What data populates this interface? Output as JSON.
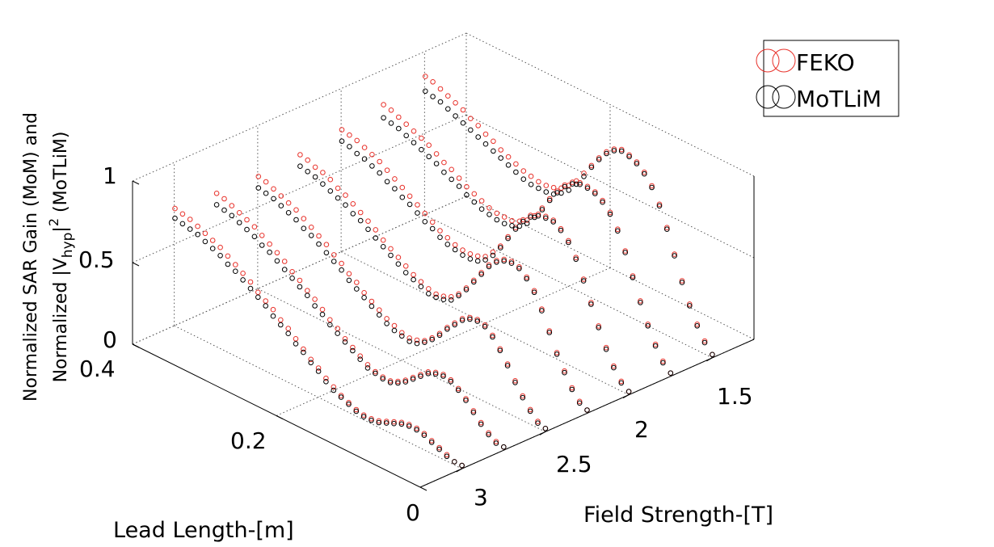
{
  "chart_data": {
    "type": "scatter",
    "title": "",
    "xlabel": "Field Strength-[T]",
    "ylabel": "Lead Length-[m]",
    "zlabel_lines": [
      "Normalized SAR Gain (MoM) and",
      "Normalized |V",
      "hyp",
      "|",
      "2",
      " (MoTLiM)"
    ],
    "x_ticks": [
      "1.5",
      "2",
      "2.5",
      "3"
    ],
    "y_ticks": [
      "0",
      "0.2",
      "0.4"
    ],
    "z_ticks": [
      "0",
      "0.5",
      "1"
    ],
    "x_range": [
      1.25,
      3.25
    ],
    "y_range": [
      0,
      0.4
    ],
    "z_range": [
      0,
      1
    ],
    "field_strengths": [
      1.5,
      1.75,
      2.0,
      2.25,
      2.5,
      2.75,
      3.0
    ],
    "lead_lengths": [
      0.0,
      0.0105,
      0.021,
      0.0315,
      0.042,
      0.0525,
      0.063,
      0.0735,
      0.084,
      0.0945,
      0.105,
      0.1155,
      0.126,
      0.1365,
      0.147,
      0.1575,
      0.168,
      0.1785,
      0.189,
      0.1995,
      0.21,
      0.2205,
      0.231,
      0.2415,
      0.252,
      0.2625,
      0.273,
      0.2835,
      0.294,
      0.3045,
      0.315,
      0.3255,
      0.336,
      0.3465,
      0.357,
      0.3675,
      0.378,
      0.3885,
      0.399
    ],
    "grid": true,
    "legend_position": "top-right",
    "series": [
      {
        "name": "FEKO",
        "color": "#e8312a",
        "marker": "circle",
        "values_by_field": [
          [
            0.02,
            0.08,
            0.16,
            0.26,
            0.38,
            0.52,
            0.66,
            0.78,
            0.87,
            0.93,
            0.97,
            0.99,
            1.0,
            0.98,
            0.94,
            0.88,
            0.81,
            0.74,
            0.67,
            0.62,
            0.58,
            0.56,
            0.55,
            0.55,
            0.56,
            0.57,
            0.59,
            0.61,
            0.63,
            0.66,
            0.68,
            0.71,
            0.73,
            0.76,
            0.78,
            0.8,
            0.82,
            0.84,
            0.85
          ],
          [
            0.02,
            0.07,
            0.15,
            0.25,
            0.37,
            0.5,
            0.63,
            0.74,
            0.82,
            0.87,
            0.9,
            0.91,
            0.91,
            0.89,
            0.85,
            0.79,
            0.72,
            0.64,
            0.57,
            0.52,
            0.49,
            0.47,
            0.47,
            0.47,
            0.48,
            0.5,
            0.52,
            0.54,
            0.57,
            0.6,
            0.62,
            0.65,
            0.68,
            0.7,
            0.72,
            0.74,
            0.76,
            0.78,
            0.79
          ],
          [
            0.02,
            0.06,
            0.13,
            0.22,
            0.33,
            0.45,
            0.57,
            0.68,
            0.76,
            0.81,
            0.84,
            0.84,
            0.83,
            0.8,
            0.75,
            0.68,
            0.6,
            0.52,
            0.46,
            0.41,
            0.39,
            0.38,
            0.38,
            0.39,
            0.41,
            0.43,
            0.46,
            0.49,
            0.52,
            0.55,
            0.58,
            0.61,
            0.64,
            0.67,
            0.69,
            0.71,
            0.73,
            0.74,
            0.75
          ],
          [
            0.02,
            0.05,
            0.11,
            0.19,
            0.28,
            0.39,
            0.5,
            0.59,
            0.65,
            0.69,
            0.7,
            0.69,
            0.66,
            0.61,
            0.54,
            0.47,
            0.4,
            0.34,
            0.3,
            0.28,
            0.27,
            0.28,
            0.3,
            0.32,
            0.35,
            0.38,
            0.41,
            0.44,
            0.48,
            0.51,
            0.54,
            0.57,
            0.6,
            0.62,
            0.65,
            0.67,
            0.68,
            0.7,
            0.71
          ],
          [
            0.02,
            0.04,
            0.09,
            0.15,
            0.22,
            0.3,
            0.37,
            0.43,
            0.47,
            0.48,
            0.47,
            0.44,
            0.39,
            0.34,
            0.28,
            0.23,
            0.19,
            0.17,
            0.16,
            0.17,
            0.19,
            0.21,
            0.24,
            0.27,
            0.3,
            0.34,
            0.37,
            0.41,
            0.44,
            0.48,
            0.51,
            0.54,
            0.57,
            0.6,
            0.62,
            0.64,
            0.66,
            0.68,
            0.69
          ],
          [
            0.02,
            0.03,
            0.06,
            0.1,
            0.15,
            0.2,
            0.24,
            0.27,
            0.28,
            0.27,
            0.25,
            0.21,
            0.17,
            0.13,
            0.1,
            0.08,
            0.08,
            0.09,
            0.11,
            0.14,
            0.17,
            0.2,
            0.24,
            0.27,
            0.31,
            0.35,
            0.38,
            0.42,
            0.45,
            0.49,
            0.52,
            0.55,
            0.58,
            0.61,
            0.63,
            0.65,
            0.67,
            0.69,
            0.7
          ],
          [
            0.02,
            0.02,
            0.04,
            0.06,
            0.08,
            0.1,
            0.11,
            0.11,
            0.1,
            0.08,
            0.06,
            0.04,
            0.03,
            0.03,
            0.04,
            0.06,
            0.08,
            0.11,
            0.14,
            0.18,
            0.21,
            0.25,
            0.29,
            0.33,
            0.36,
            0.4,
            0.43,
            0.46,
            0.5,
            0.53,
            0.56,
            0.59,
            0.62,
            0.64,
            0.66,
            0.68,
            0.7,
            0.71,
            0.72
          ]
        ]
      },
      {
        "name": "MoTLiM",
        "color": "#000000",
        "marker": "circle",
        "values_by_field": [
          [
            0.02,
            0.07,
            0.15,
            0.25,
            0.37,
            0.51,
            0.65,
            0.77,
            0.86,
            0.92,
            0.96,
            0.98,
            0.99,
            0.97,
            0.93,
            0.87,
            0.8,
            0.72,
            0.65,
            0.59,
            0.55,
            0.52,
            0.51,
            0.51,
            0.51,
            0.52,
            0.54,
            0.56,
            0.58,
            0.6,
            0.62,
            0.64,
            0.66,
            0.68,
            0.7,
            0.72,
            0.74,
            0.75,
            0.76
          ],
          [
            0.02,
            0.06,
            0.14,
            0.24,
            0.36,
            0.49,
            0.62,
            0.73,
            0.81,
            0.86,
            0.89,
            0.9,
            0.9,
            0.88,
            0.84,
            0.78,
            0.71,
            0.63,
            0.56,
            0.5,
            0.46,
            0.44,
            0.43,
            0.43,
            0.44,
            0.45,
            0.47,
            0.49,
            0.52,
            0.54,
            0.56,
            0.59,
            0.61,
            0.63,
            0.65,
            0.67,
            0.69,
            0.7,
            0.71
          ],
          [
            0.02,
            0.05,
            0.12,
            0.21,
            0.32,
            0.44,
            0.56,
            0.67,
            0.75,
            0.8,
            0.83,
            0.83,
            0.82,
            0.79,
            0.74,
            0.67,
            0.59,
            0.51,
            0.44,
            0.39,
            0.36,
            0.35,
            0.35,
            0.36,
            0.37,
            0.39,
            0.42,
            0.44,
            0.47,
            0.5,
            0.52,
            0.55,
            0.57,
            0.6,
            0.62,
            0.64,
            0.65,
            0.67,
            0.68
          ],
          [
            0.02,
            0.04,
            0.1,
            0.18,
            0.27,
            0.38,
            0.49,
            0.58,
            0.64,
            0.68,
            0.69,
            0.68,
            0.65,
            0.6,
            0.53,
            0.46,
            0.39,
            0.33,
            0.28,
            0.26,
            0.25,
            0.25,
            0.27,
            0.29,
            0.31,
            0.34,
            0.37,
            0.4,
            0.43,
            0.46,
            0.49,
            0.51,
            0.54,
            0.56,
            0.58,
            0.6,
            0.62,
            0.63,
            0.64
          ],
          [
            0.02,
            0.03,
            0.08,
            0.14,
            0.21,
            0.29,
            0.36,
            0.42,
            0.46,
            0.47,
            0.46,
            0.43,
            0.38,
            0.33,
            0.27,
            0.22,
            0.18,
            0.15,
            0.14,
            0.15,
            0.16,
            0.18,
            0.21,
            0.24,
            0.27,
            0.3,
            0.33,
            0.37,
            0.4,
            0.43,
            0.46,
            0.49,
            0.51,
            0.54,
            0.56,
            0.58,
            0.6,
            0.61,
            0.62
          ],
          [
            0.02,
            0.02,
            0.05,
            0.09,
            0.14,
            0.19,
            0.23,
            0.26,
            0.27,
            0.26,
            0.24,
            0.2,
            0.16,
            0.12,
            0.09,
            0.07,
            0.07,
            0.08,
            0.09,
            0.12,
            0.15,
            0.18,
            0.21,
            0.24,
            0.28,
            0.31,
            0.35,
            0.38,
            0.41,
            0.44,
            0.47,
            0.5,
            0.52,
            0.55,
            0.57,
            0.59,
            0.61,
            0.62,
            0.63
          ],
          [
            0.02,
            0.02,
            0.03,
            0.05,
            0.07,
            0.09,
            0.1,
            0.1,
            0.09,
            0.07,
            0.05,
            0.03,
            0.02,
            0.02,
            0.03,
            0.05,
            0.07,
            0.09,
            0.12,
            0.16,
            0.19,
            0.23,
            0.26,
            0.3,
            0.33,
            0.36,
            0.4,
            0.43,
            0.46,
            0.49,
            0.52,
            0.54,
            0.57,
            0.59,
            0.61,
            0.63,
            0.64,
            0.65,
            0.66
          ]
        ]
      }
    ]
  }
}
